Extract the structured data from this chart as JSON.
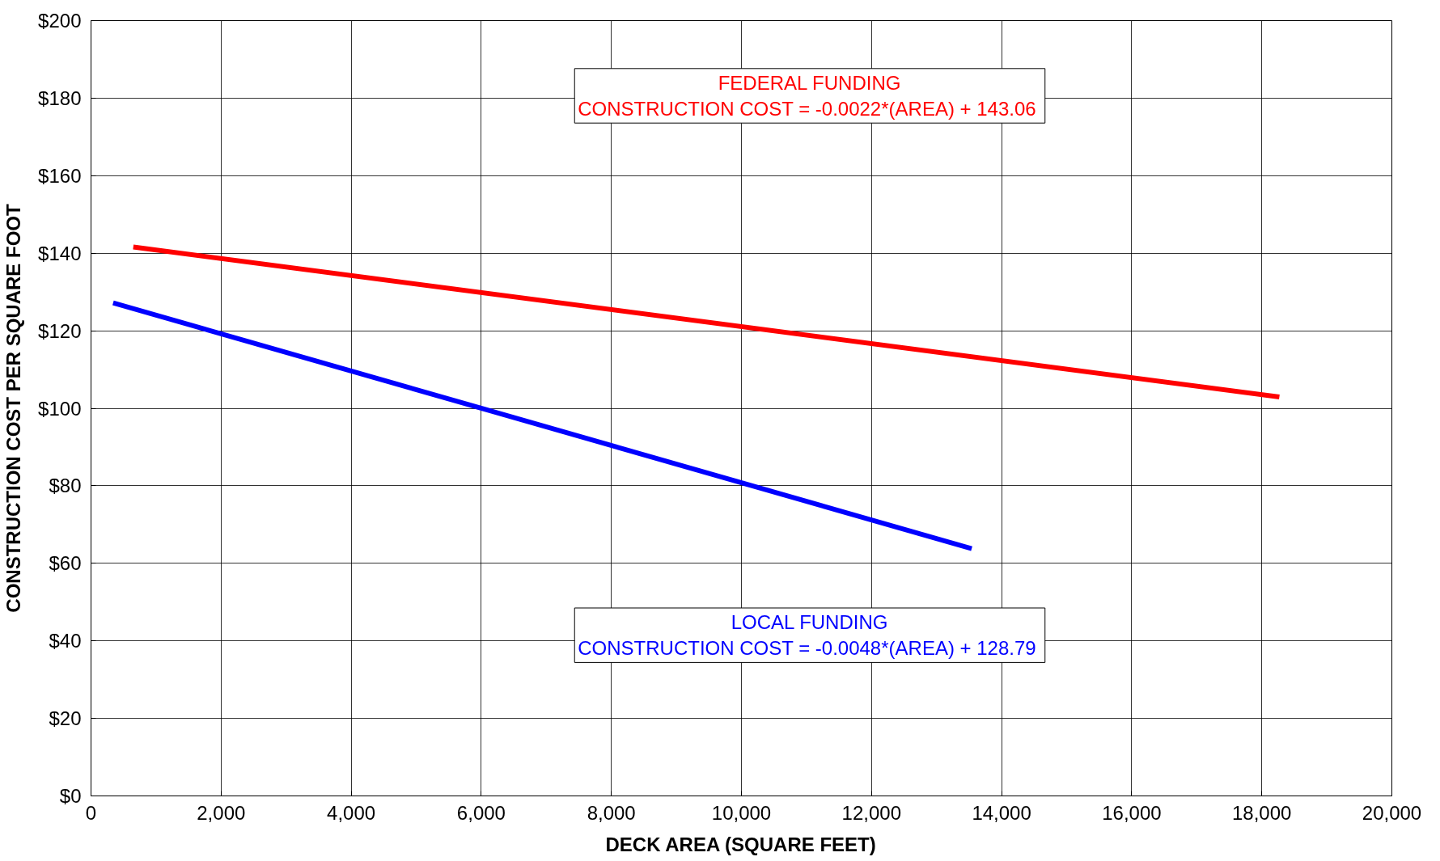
{
  "chart_data": {
    "type": "line",
    "xlabel": "DECK AREA (SQUARE FEET)",
    "ylabel": "CONSTRUCTION COST PER SQUARE FOOT",
    "series": [
      {
        "color": "#ff0000",
        "x": [
          650,
          18270
        ],
        "values": [
          141.6,
          102.9
        ]
      },
      {
        "color": "#0000ff",
        "x": [
          340,
          13540
        ],
        "values": [
          127.2,
          63.8
        ]
      }
    ],
    "annotations": [
      "FEDERAL FUNDING\nCONSTRUCTION COST  = -0.0022*(AREA) + 143.06",
      "LOCAL FUNDING\nCONSTRUCTION COST  = -0.0048*(AREA) + 128.79"
    ],
    "xlim": [
      0,
      20000
    ],
    "xticks": [
      0,
      {
        "value": 2000,
        "label": "2,000"
      },
      {
        "value": 4000,
        "label": "4,000"
      },
      {
        "value": 6000,
        "label": "6,000"
      },
      {
        "value": 8000,
        "label": "8,000"
      },
      {
        "value": 10000,
        "label": "10,000"
      },
      {
        "value": 12000,
        "label": "12,000"
      },
      {
        "value": 14000,
        "label": "14,000"
      },
      {
        "value": 16000,
        "label": "16,000"
      },
      {
        "value": 18000,
        "label": "18,000"
      },
      {
        "value": 20000,
        "label": "20,000"
      }
    ],
    "ylim": [
      0,
      200
    ],
    "yticks": [
      {
        "value": 0,
        "label": "$0"
      },
      {
        "value": 20,
        "label": "$20"
      },
      {
        "value": 40,
        "label": "$40"
      },
      {
        "value": 60,
        "label": "$60"
      },
      {
        "value": 80,
        "label": "$80"
      },
      {
        "value": 100,
        "label": "$100"
      },
      {
        "value": 120,
        "label": "$120"
      },
      {
        "value": 140,
        "label": "$140"
      },
      {
        "value": 160,
        "label": "$160"
      },
      {
        "value": 180,
        "label": "$180"
      },
      {
        "value": 200,
        "label": "$200"
      }
    ],
    "grid": true,
    "marker": "none",
    "line_style": "solid"
  }
}
